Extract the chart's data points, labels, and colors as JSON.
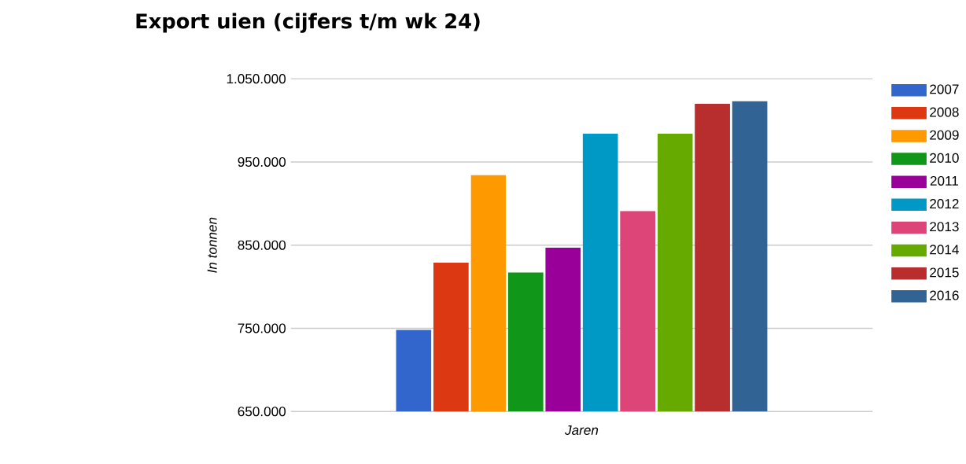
{
  "chart_data": {
    "type": "bar",
    "title": "Export uien (cijfers t/m wk 24)",
    "xlabel": "Jaren",
    "ylabel": "In tonnen",
    "categories": [
      null
    ],
    "series": [
      {
        "name": "2007",
        "color": "#3366cc",
        "values": [
          748000
        ]
      },
      {
        "name": "2008",
        "color": "#dc3912",
        "values": [
          829000
        ]
      },
      {
        "name": "2009",
        "color": "#ff9900",
        "values": [
          934000
        ]
      },
      {
        "name": "2010",
        "color": "#109618",
        "values": [
          817000
        ]
      },
      {
        "name": "2011",
        "color": "#990099",
        "values": [
          847000
        ]
      },
      {
        "name": "2012",
        "color": "#0099c6",
        "values": [
          984000
        ]
      },
      {
        "name": "2013",
        "color": "#dd4477",
        "values": [
          891000
        ]
      },
      {
        "name": "2014",
        "color": "#66aa00",
        "values": [
          984000
        ]
      },
      {
        "name": "2015",
        "color": "#b82e2e",
        "values": [
          1020000
        ]
      },
      {
        "name": "2016",
        "color": "#316395",
        "values": [
          1023000
        ]
      }
    ],
    "ylim": [
      650000,
      1050000
    ],
    "yticks": [
      {
        "value": 650000,
        "label": "650.000"
      },
      {
        "value": 750000,
        "label": "750.000"
      },
      {
        "value": 850000,
        "label": "850.000"
      },
      {
        "value": 950000,
        "label": "950.000"
      },
      {
        "value": 1050000,
        "label": "1.050.000"
      }
    ],
    "grid": "y",
    "legend": "right"
  }
}
